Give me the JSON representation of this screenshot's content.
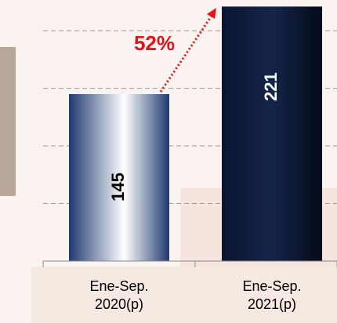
{
  "chart_data": {
    "type": "bar",
    "categories": [
      "Ene-Sep.\n2020(p)",
      "Ene-Sep.\n2021(p)"
    ],
    "values": [
      145,
      221
    ],
    "colors": [
      "#1f3a70",
      "#0b1530"
    ],
    "annotation": "52%",
    "ylim": [
      0,
      226.7
    ],
    "yticks": [
      50,
      100,
      150,
      200
    ],
    "grid": true
  }
}
